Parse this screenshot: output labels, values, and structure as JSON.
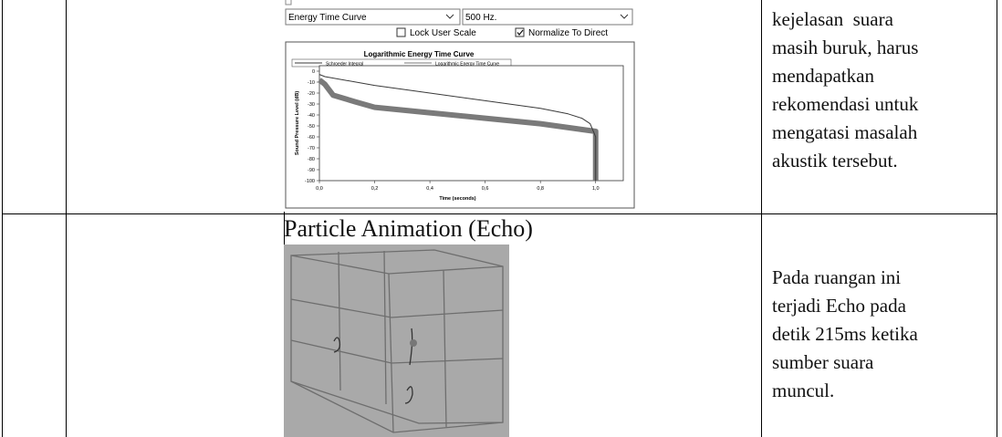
{
  "table": {
    "rows": [
      {
        "controls": {
          "curve_type": "Energy Time Curve",
          "frequency": "500 Hz.",
          "checkboxes": [
            {
              "label": "Lock User Scale",
              "checked": false
            },
            {
              "label": "Normalize To Direct",
              "checked": true
            }
          ]
        },
        "chart": {
          "type": "line",
          "title": "Logarithmic Energy Time Curve",
          "x_label": "Time (seconds)",
          "y_label": "Sound Pressure Level (dB)",
          "xlim": [
            0,
            1.1
          ],
          "ylim": [
            -100,
            5
          ],
          "xticks": [
            {
              "value": 0,
              "label": "0,0"
            },
            {
              "value": 0.2,
              "label": "0,2"
            },
            {
              "value": 0.4,
              "label": "0,4"
            },
            {
              "value": 0.6,
              "label": "0,6"
            },
            {
              "value": 0.8,
              "label": "0,8"
            },
            {
              "value": 1.0,
              "label": "1,0"
            }
          ],
          "yticks": [
            0,
            -10,
            -20,
            -30,
            -40,
            -50,
            -60,
            -70,
            -80,
            -90,
            -100
          ],
          "series": [
            {
              "name": "Schroeder Integral",
              "color": "#3a3a3a",
              "x": [
                0,
                0.02,
                0.2,
                0.4,
                0.6,
                0.8,
                0.9,
                0.95,
                0.98,
                1.0,
                1.0
              ],
              "values": [
                -3,
                -5,
                -13,
                -20,
                -27,
                -34,
                -39,
                -43,
                -48,
                -60,
                -100
              ]
            },
            {
              "name": "Logarithmic Energy Time Curve",
              "color": "#7a7a7a",
              "x": [
                0,
                0.02,
                0.05,
                0.13,
                0.2,
                0.4,
                0.6,
                0.8,
                1.0,
                1.0
              ],
              "values": [
                -8,
                -12,
                -22,
                -28,
                -33,
                -38,
                -43,
                -48,
                -55,
                -100
              ]
            }
          ]
        },
        "text": [
          "kejelasan  suara",
          "masih buruk, harus",
          "mendapatkan",
          "rekomendasi untuk",
          "mengatasi masalah",
          "akustik tersebut."
        ]
      },
      {
        "caption": "Particle Animation (Echo)",
        "text": [
          "Pada ruangan ini",
          "terjadi Echo pada",
          "detik 215ms ketika",
          "sumber suara",
          "muncul."
        ]
      }
    ]
  }
}
